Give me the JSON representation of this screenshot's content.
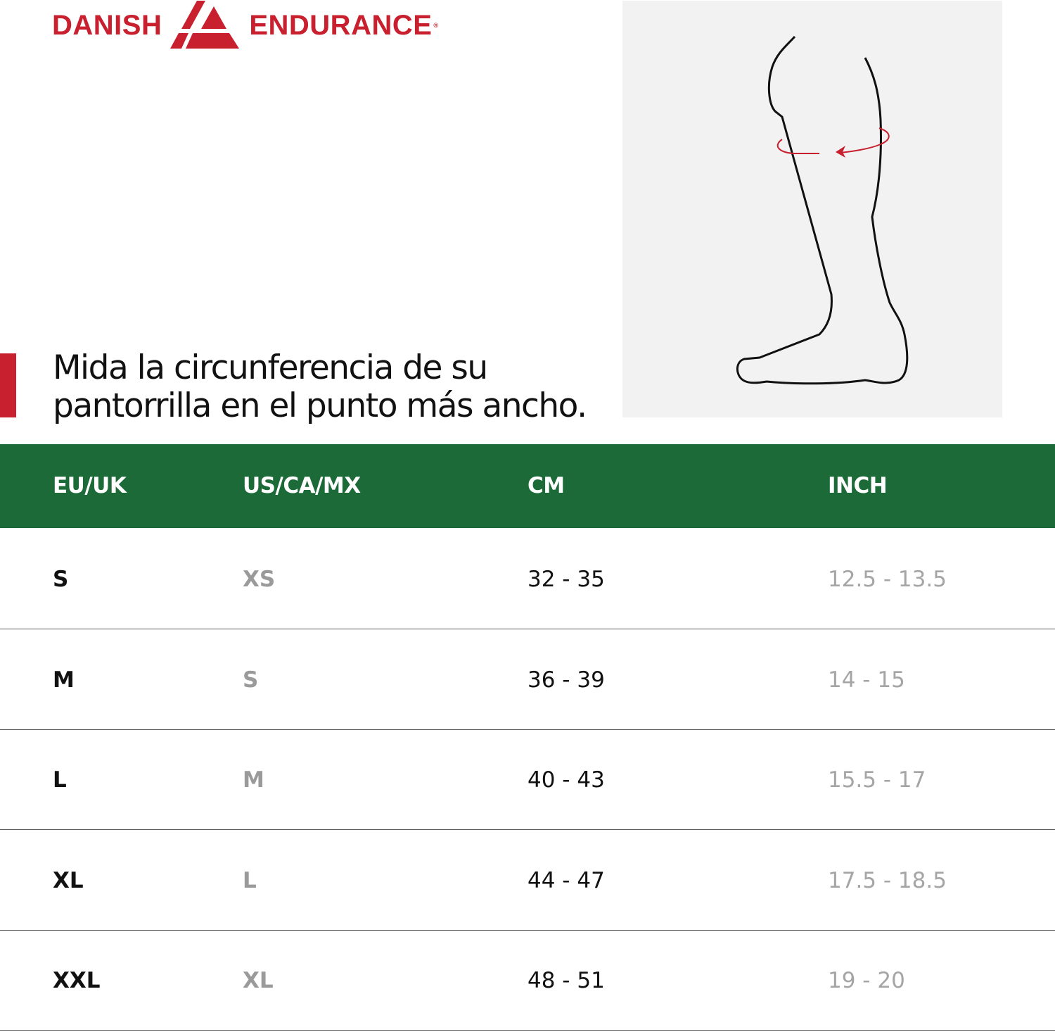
{
  "brand": {
    "name_left": "DANISH",
    "name_right": "ENDURANCE",
    "registered": "®",
    "color": "#c8202f"
  },
  "illustration": {
    "subject": "leg-calf-outline",
    "measure_arrow_color": "#c8202f"
  },
  "headline": {
    "line1": "Mida la circunferencia de su",
    "line2": "pantorrilla en el punto más ancho."
  },
  "table": {
    "header_color": "#1b6a37",
    "columns": [
      "EU/UK",
      "US/CA/MX",
      "CM",
      "INCH"
    ],
    "rows": [
      [
        "S",
        "XS",
        "32 - 35",
        "12.5 - 13.5"
      ],
      [
        "M",
        "S",
        "36 - 39",
        "14 - 15"
      ],
      [
        "L",
        "M",
        "40 - 43",
        "15.5 - 17"
      ],
      [
        "XL",
        "L",
        "44 - 47",
        "17.5 - 18.5"
      ],
      [
        "XXL",
        "XL",
        "48 - 51",
        "19 - 20"
      ]
    ]
  }
}
